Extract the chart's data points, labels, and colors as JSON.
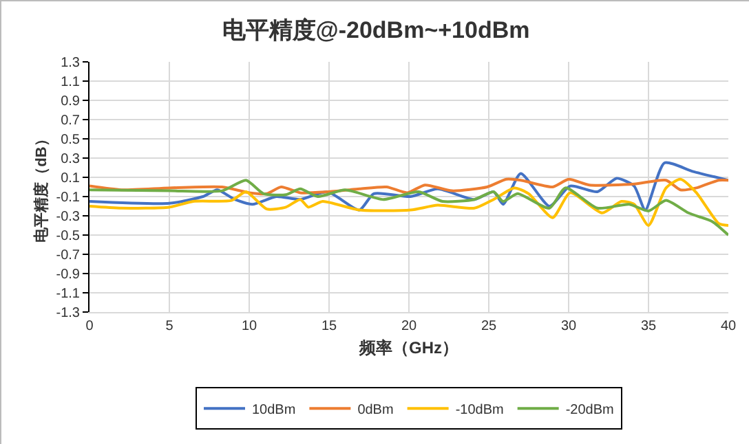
{
  "chart_data": {
    "type": "line",
    "title": "电平精度@-20dBm~+10dBm",
    "xlabel": "频率（GHz）",
    "ylabel": "电平精度（dB）",
    "xlim": [
      0,
      40
    ],
    "xticks": [
      0,
      5,
      10,
      15,
      20,
      25,
      30,
      35,
      40
    ],
    "ylim": [
      -1.3,
      1.3
    ],
    "yticks": [
      -1.3,
      -1.1,
      -0.9,
      -0.7,
      -0.5,
      -0.3,
      -0.1,
      0.1,
      0.3,
      0.5,
      0.7,
      0.9,
      1.1,
      1.3
    ],
    "grid": true,
    "legend": "bottom",
    "line_style": "solid",
    "marker": "none",
    "series": [
      {
        "name": "10dBm",
        "color": "#4472c4",
        "x": [
          0,
          5,
          7.1,
          8,
          9.1,
          10.2,
          11.7,
          13.2,
          14.9,
          16.9,
          17.8,
          20.1,
          21.8,
          24.1,
          25.3,
          25.9,
          27,
          28.8,
          30.1,
          31.8,
          33,
          34.1,
          34.8,
          36,
          37.8,
          40
        ],
        "values": [
          -0.15,
          -0.17,
          -0.1,
          -0.03,
          -0.13,
          -0.18,
          -0.1,
          -0.13,
          -0.05,
          -0.24,
          -0.07,
          -0.1,
          -0.02,
          -0.13,
          -0.05,
          -0.18,
          0.14,
          -0.2,
          0.01,
          -0.05,
          0.09,
          0.01,
          -0.24,
          0.25,
          0.16,
          0.07
        ]
      },
      {
        "name": "0dBm",
        "color": "#ed7d31",
        "x": [
          0,
          2,
          5,
          8.3,
          10,
          11.1,
          12,
          13.2,
          14.9,
          16.9,
          18.6,
          19.9,
          21,
          22.7,
          24.9,
          26.1,
          27,
          29,
          30,
          31.3,
          34.1,
          36.1,
          37,
          38,
          39.4,
          40
        ],
        "values": [
          0.01,
          -0.03,
          -0.01,
          0,
          -0.06,
          -0.07,
          0,
          -0.06,
          -0.05,
          -0.02,
          0,
          -0.06,
          0.02,
          -0.04,
          0,
          0.08,
          0.07,
          0,
          0.08,
          0.02,
          0.03,
          0.07,
          -0.03,
          -0.01,
          0.07,
          0.07
        ]
      },
      {
        "name": "-10dBm",
        "color": "#ffc000",
        "x": [
          0,
          2,
          5,
          6.5,
          8.9,
          9.8,
          11.1,
          12.3,
          13.2,
          13.7,
          14.6,
          16.9,
          20.1,
          21.8,
          24.1,
          25.3,
          26.6,
          27.5,
          29,
          30.1,
          32.1,
          33.3,
          34.1,
          35,
          36.1,
          37,
          38,
          39.4,
          40
        ],
        "values": [
          -0.2,
          -0.22,
          -0.21,
          -0.15,
          -0.14,
          -0.05,
          -0.23,
          -0.21,
          -0.13,
          -0.21,
          -0.15,
          -0.24,
          -0.24,
          -0.19,
          -0.22,
          -0.13,
          -0.01,
          -0.07,
          -0.32,
          -0.06,
          -0.27,
          -0.15,
          -0.18,
          -0.4,
          -0.01,
          0.08,
          -0.06,
          -0.38,
          -0.4
        ]
      },
      {
        "name": "-20dBm",
        "color": "#70ad47",
        "x": [
          0,
          5,
          8.3,
          9.8,
          10.9,
          12.3,
          13.2,
          14.3,
          16,
          18.4,
          20.6,
          22.1,
          24.1,
          25.3,
          25.9,
          26.8,
          28.8,
          29.8,
          31.8,
          33.8,
          35,
          36.1,
          37.5,
          39,
          40
        ],
        "values": [
          -0.03,
          -0.04,
          -0.04,
          0.07,
          -0.07,
          -0.08,
          -0.02,
          -0.1,
          -0.03,
          -0.13,
          -0.05,
          -0.15,
          -0.13,
          -0.05,
          -0.15,
          -0.07,
          -0.22,
          -0.01,
          -0.22,
          -0.18,
          -0.25,
          -0.14,
          -0.27,
          -0.36,
          -0.5
        ]
      }
    ]
  }
}
